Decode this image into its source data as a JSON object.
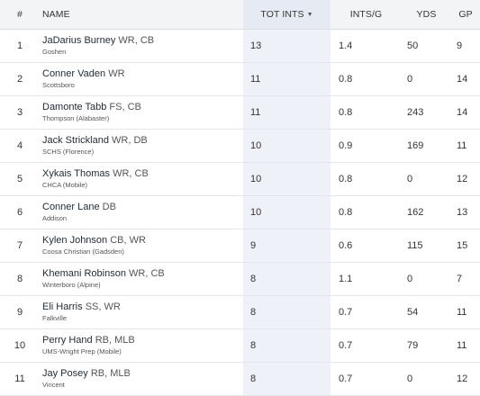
{
  "table": {
    "headers": {
      "rank": "#",
      "name": "NAME",
      "tot_ints": "TOT INTS",
      "ints_per_game": "INTS/G",
      "yds": "YDS",
      "gp": "GP"
    },
    "sort_icon": "sort-descending-icon",
    "rows": [
      {
        "rank": "1",
        "name": "JaDarius Burney",
        "pos": "WR, CB",
        "school": "Goshen",
        "tot_ints": "13",
        "ints_per_game": "1.4",
        "yds": "50",
        "gp": "9"
      },
      {
        "rank": "2",
        "name": "Conner Vaden",
        "pos": "WR",
        "school": "Scottsboro",
        "tot_ints": "11",
        "ints_per_game": "0.8",
        "yds": "0",
        "gp": "14"
      },
      {
        "rank": "3",
        "name": "Damonte Tabb",
        "pos": "FS, CB",
        "school": "Thompson (Alabaster)",
        "tot_ints": "11",
        "ints_per_game": "0.8",
        "yds": "243",
        "gp": "14"
      },
      {
        "rank": "4",
        "name": "Jack Strickland",
        "pos": "WR, DB",
        "school": "SCHS (Florence)",
        "tot_ints": "10",
        "ints_per_game": "0.9",
        "yds": "169",
        "gp": "11"
      },
      {
        "rank": "5",
        "name": "Xykais Thomas",
        "pos": "WR, CB",
        "school": "CHCA (Mobile)",
        "tot_ints": "10",
        "ints_per_game": "0.8",
        "yds": "0",
        "gp": "12"
      },
      {
        "rank": "6",
        "name": "Conner Lane",
        "pos": "DB",
        "school": "Addison",
        "tot_ints": "10",
        "ints_per_game": "0.8",
        "yds": "162",
        "gp": "13"
      },
      {
        "rank": "7",
        "name": "Kylen Johnson",
        "pos": "CB, WR",
        "school": "Coosa Christian (Gadsden)",
        "tot_ints": "9",
        "ints_per_game": "0.6",
        "yds": "115",
        "gp": "15"
      },
      {
        "rank": "8",
        "name": "Khemani Robinson",
        "pos": "WR, CB",
        "school": "Winterboro (Alpine)",
        "tot_ints": "8",
        "ints_per_game": "1.1",
        "yds": "0",
        "gp": "7"
      },
      {
        "rank": "9",
        "name": "Eli Harris",
        "pos": "SS, WR",
        "school": "Falkville",
        "tot_ints": "8",
        "ints_per_game": "0.7",
        "yds": "54",
        "gp": "11"
      },
      {
        "rank": "10",
        "name": "Perry Hand",
        "pos": "RB, MLB",
        "school": "UMS-Wright Prep (Mobile)",
        "tot_ints": "8",
        "ints_per_game": "0.7",
        "yds": "79",
        "gp": "11"
      },
      {
        "rank": "11",
        "name": "Jay Posey",
        "pos": "RB, MLB",
        "school": "Vincent",
        "tot_ints": "8",
        "ints_per_game": "0.7",
        "yds": "0",
        "gp": "12"
      }
    ]
  }
}
